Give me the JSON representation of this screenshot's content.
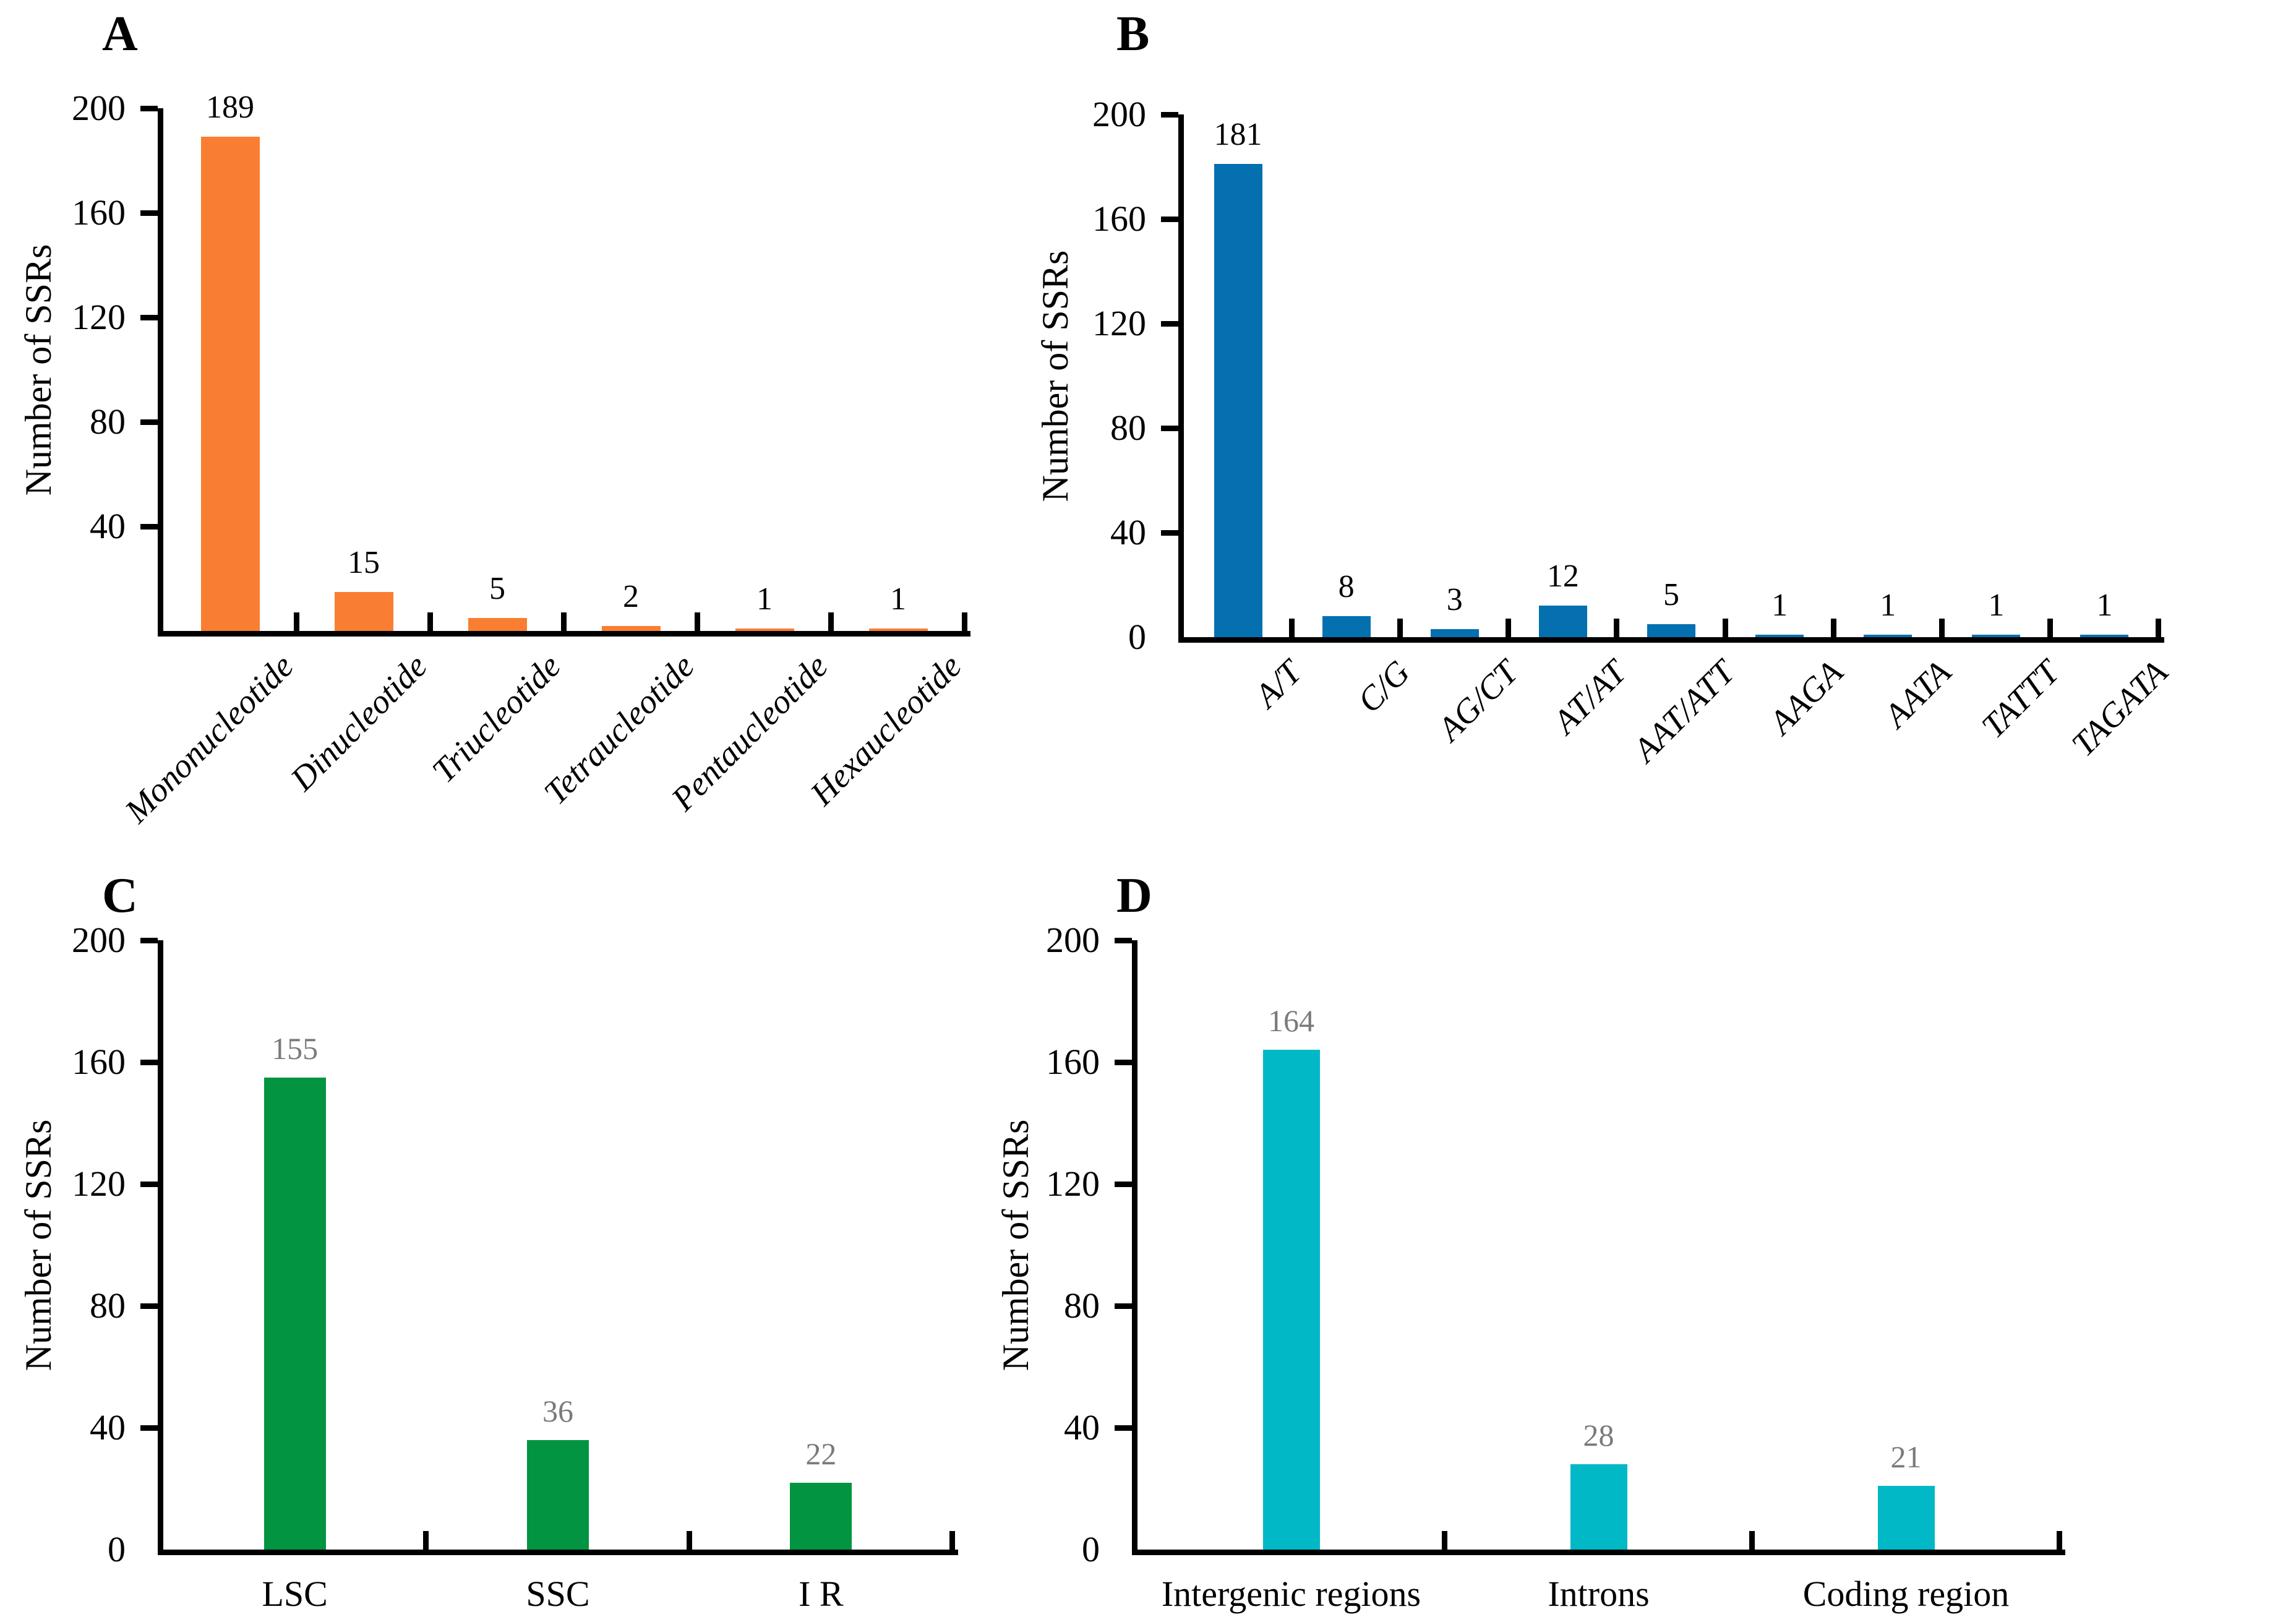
{
  "figure": {
    "background_color": "#ffffff",
    "axis_color": "#000000"
  },
  "chart_data": [
    {
      "panel": "A",
      "type": "bar",
      "ylabel": "Number of SSRs",
      "ylim": [
        0,
        200
      ],
      "yticks": [
        40,
        80,
        120,
        160,
        200
      ],
      "categories": [
        "Mononucleotide",
        "Dinucleotide",
        "Triucleotide",
        "Tetraucleotide",
        "Pentaucleotide",
        "Hexaucleotide"
      ],
      "values": [
        189,
        15,
        5,
        2,
        1,
        1
      ],
      "bar_color": "#FA7E31",
      "value_label_color": "#000000",
      "x_label_style": "rotated-italic",
      "grid": "off",
      "legend": "none"
    },
    {
      "panel": "B",
      "type": "bar",
      "ylabel": "Number of SSRs",
      "ylim": [
        0,
        200
      ],
      "yticks": [
        0,
        40,
        80,
        120,
        160,
        200
      ],
      "categories": [
        "A/T",
        "C/G",
        "AG/CT",
        "AT/AT",
        "AAT/ATT",
        "AAGA",
        "AATA",
        "TATTT",
        "TAGATA"
      ],
      "values": [
        181,
        8,
        3,
        12,
        5,
        1,
        1,
        1,
        1
      ],
      "bar_color": "#0470AF",
      "value_label_color": "#000000",
      "x_label_style": "rotated-italic",
      "grid": "off",
      "legend": "none"
    },
    {
      "panel": "C",
      "type": "bar",
      "ylabel": "Number of SSRs",
      "ylim": [
        0,
        200
      ],
      "yticks": [
        0,
        40,
        80,
        120,
        160,
        200
      ],
      "categories": [
        "LSC",
        "SSC",
        "I R"
      ],
      "values": [
        155,
        36,
        22
      ],
      "bar_color": "#029440",
      "value_label_color": "#7A7A7A",
      "x_label_style": "horizontal",
      "grid": "off",
      "legend": "none"
    },
    {
      "panel": "D",
      "type": "bar",
      "ylabel": "Number of SSRs",
      "ylim": [
        0,
        200
      ],
      "yticks": [
        0,
        40,
        80,
        120,
        160,
        200
      ],
      "categories": [
        "Intergenic regions",
        "Introns",
        "Coding region"
      ],
      "values": [
        164,
        28,
        21
      ],
      "bar_color": "#00B8C6",
      "value_label_color": "#7A7A7A",
      "x_label_style": "horizontal",
      "grid": "off",
      "legend": "none"
    }
  ]
}
